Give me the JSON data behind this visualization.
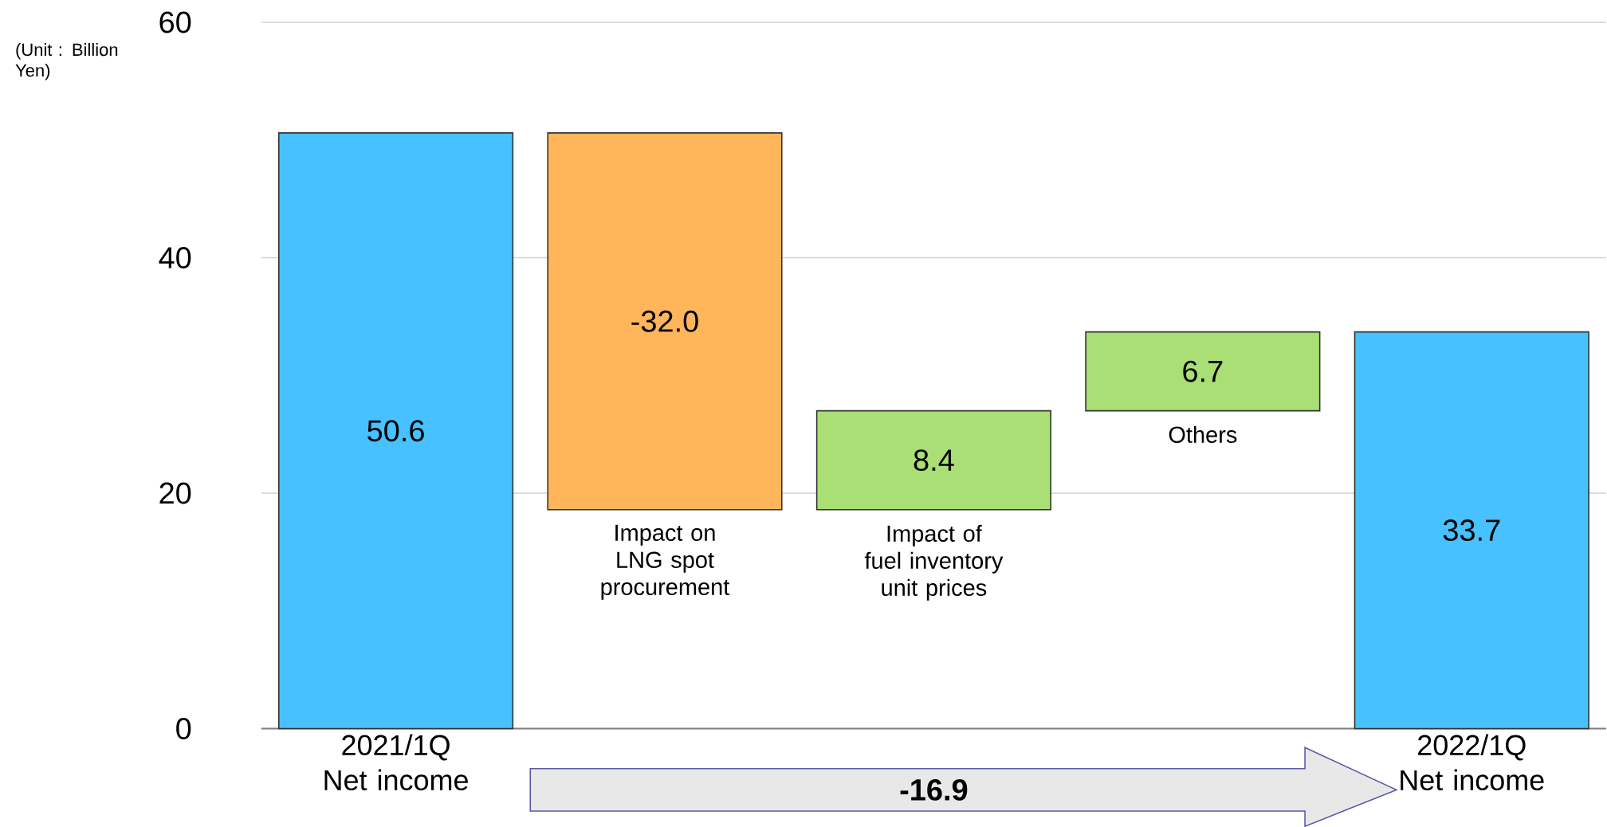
{
  "chart_data": {
    "type": "bar",
    "categories": [
      "2021/1Q Net income",
      "Impact on LNG spot procurement",
      "Impact of fuel inventory unit prices",
      "Others",
      "2022/1Q Net income"
    ],
    "values": [
      50.6,
      -32.0,
      8.4,
      6.7,
      33.7
    ],
    "base": [
      0,
      50.6,
      18.6,
      27.0,
      0
    ],
    "colors": [
      "#47c1ff",
      "#ffb55a",
      "#a9df75",
      "#a9df75",
      "#47c1ff"
    ],
    "value_labels": [
      "50.6",
      "-32.0",
      "8.4",
      "6.7",
      "33.7"
    ],
    "ylim": [
      0,
      60
    ],
    "yticks": [
      0,
      20,
      40,
      60
    ],
    "grid": "y",
    "annotations": [
      "(Unit : Billion Yen)",
      "-16.9"
    ]
  }
}
